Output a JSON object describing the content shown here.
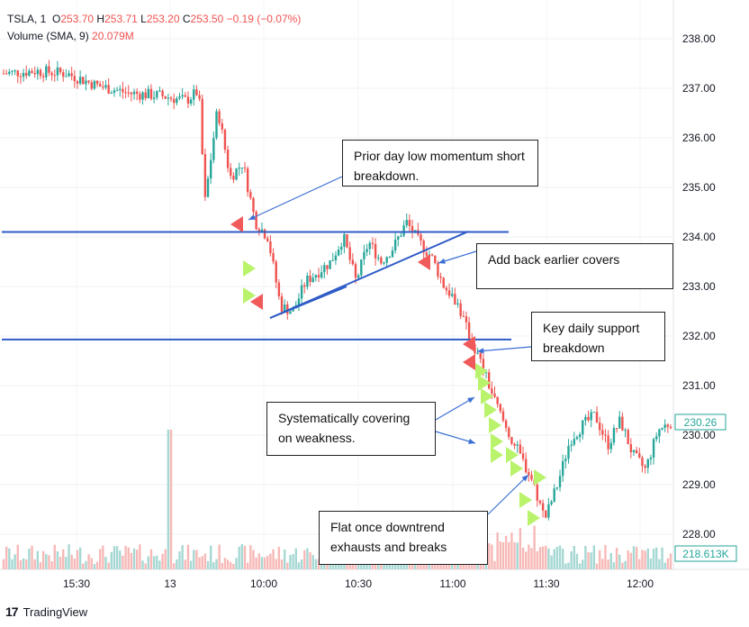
{
  "header": {
    "symbol": "TSLA, 1",
    "open_label": "O",
    "open": "253.70",
    "high_label": "H",
    "high": "253.71",
    "low_label": "L",
    "low": "253.20",
    "close_label": "C",
    "close": "253.50",
    "change": "−0.19 (−0.07%)",
    "volume_label": "Volume (SMA, 9)",
    "volume_value": "20.079M"
  },
  "chart_data": {
    "type": "candlestick",
    "symbol": "TSLA",
    "interval": "1",
    "y_ticks": [
      238.0,
      237.0,
      236.0,
      235.0,
      234.0,
      233.0,
      232.0,
      231.0,
      230.0,
      229.0,
      228.0
    ],
    "ylim": [
      227.2,
      238.7
    ],
    "x_ticks": [
      "15:30",
      "13",
      "10:00",
      "10:30",
      "11:00",
      "11:30",
      "12:00"
    ],
    "last_price": "230.26",
    "last_volume": "218.613K",
    "horizontal_levels": [
      234.1,
      231.93
    ],
    "trendline": {
      "from": [
        232.27
      ],
      "to": [
        234.1
      ]
    },
    "price_path": [
      {
        "t": 0,
        "p": 237.3
      },
      {
        "t": 10,
        "p": 237.35
      },
      {
        "t": 20,
        "p": 237.3
      },
      {
        "t": 30,
        "p": 237.05
      },
      {
        "t": 40,
        "p": 236.9
      },
      {
        "t": 50,
        "p": 236.85
      },
      {
        "t": 58,
        "p": 236.75
      },
      {
        "t": 62,
        "p": 236.95
      },
      {
        "t": 64,
        "p": 234.7
      },
      {
        "t": 68,
        "p": 236.6
      },
      {
        "t": 72,
        "p": 235.2
      },
      {
        "t": 76,
        "p": 235.5
      },
      {
        "t": 80,
        "p": 234.3
      },
      {
        "t": 84,
        "p": 234.0
      },
      {
        "t": 88,
        "p": 232.6
      },
      {
        "t": 92,
        "p": 232.5
      },
      {
        "t": 96,
        "p": 233.1
      },
      {
        "t": 100,
        "p": 233.3
      },
      {
        "t": 104,
        "p": 233.5
      },
      {
        "t": 108,
        "p": 234.0
      },
      {
        "t": 112,
        "p": 233.1
      },
      {
        "t": 116,
        "p": 233.9
      },
      {
        "t": 120,
        "p": 233.5
      },
      {
        "t": 124,
        "p": 233.8
      },
      {
        "t": 128,
        "p": 234.3
      },
      {
        "t": 132,
        "p": 233.9
      },
      {
        "t": 136,
        "p": 233.6
      },
      {
        "t": 140,
        "p": 233.0
      },
      {
        "t": 144,
        "p": 232.7
      },
      {
        "t": 148,
        "p": 232.0
      },
      {
        "t": 152,
        "p": 231.4
      },
      {
        "t": 156,
        "p": 230.7
      },
      {
        "t": 160,
        "p": 230.1
      },
      {
        "t": 164,
        "p": 229.6
      },
      {
        "t": 168,
        "p": 229.1
      },
      {
        "t": 172,
        "p": 228.3
      },
      {
        "t": 176,
        "p": 229.0
      },
      {
        "t": 180,
        "p": 229.9
      },
      {
        "t": 184,
        "p": 230.2
      },
      {
        "t": 188,
        "p": 230.4
      },
      {
        "t": 192,
        "p": 229.8
      },
      {
        "t": 196,
        "p": 230.3
      },
      {
        "t": 200,
        "p": 229.6
      },
      {
        "t": 204,
        "p": 229.3
      },
      {
        "t": 208,
        "p": 230.1
      },
      {
        "t": 212,
        "p": 230.26
      }
    ],
    "annotations": [
      "Prior day low momentum short breakdown.",
      "Add back earlier covers",
      "Key daily support breakdown",
      "Systematically covering on weakness.",
      "Flat once downtrend exhausts and breaks"
    ]
  },
  "notes": {
    "n1": "Prior day low momentum short breakdown.",
    "n2": "Add back earlier covers",
    "n3": "Key daily support breakdown",
    "n4": "Systematically covering on weakness.",
    "n5": "Flat once downtrend exhausts and breaks"
  },
  "footer": {
    "brand": "TradingView",
    "logo": "17"
  },
  "colors": {
    "up": "#26a69a",
    "down": "#ef5350",
    "line": "#2e5bc7",
    "signal_sell": "#f05a5a",
    "signal_buy": "#b9f36c",
    "vol_up": "#a6d8d3",
    "vol_down": "#f7b9b7"
  }
}
